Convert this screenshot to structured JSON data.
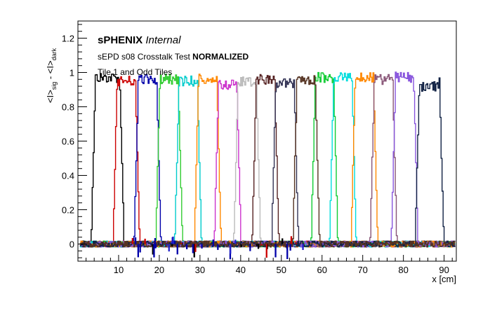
{
  "chart_data": {
    "type": "line",
    "title": "",
    "xlabel": "x [cm]",
    "ylabel": "<I>sig - <I>dark",
    "ylabel_parts": {
      "main1": "<I>",
      "sub1": "sig",
      "minus": " - ",
      "main2": "<I>",
      "sub2": "dark"
    },
    "xlim": [
      0,
      93
    ],
    "ylim": [
      -0.1,
      1.3
    ],
    "x_ticks": [
      10,
      20,
      30,
      40,
      50,
      60,
      70,
      80,
      90
    ],
    "y_ticks": [
      0,
      0.2,
      0.4,
      0.6,
      0.8,
      1,
      1.2
    ],
    "y_tick_labels": [
      "0",
      "0.2",
      "0.4",
      "0.6",
      "0.8",
      "1",
      "1.2"
    ],
    "grid": false,
    "legend": "none",
    "annotations": {
      "brand_bold": "sPHENIX",
      "brand_italic": "Internal",
      "line2_normal": "sEPD s08 Crosstalk Test",
      "line2_bold": "NORMALIZED",
      "line3": "Tile 1 and Odd Tiles"
    },
    "series": [
      {
        "color": "#000000",
        "center": 7.2,
        "width": 7.0,
        "peak": 1.0
      },
      {
        "color": "#cc0000",
        "center": 11.8,
        "width": 5.5,
        "peak": 0.98
      },
      {
        "color": "#0000aa",
        "center": 17.0,
        "width": 5.5,
        "peak": 0.99
      },
      {
        "color": "#33cc33",
        "center": 22.3,
        "width": 5.5,
        "peak": 0.99
      },
      {
        "color": "#00cccc",
        "center": 27.0,
        "width": 5.5,
        "peak": 0.98
      },
      {
        "color": "#ff8800",
        "center": 31.8,
        "width": 5.5,
        "peak": 0.99
      },
      {
        "color": "#cc33cc",
        "center": 36.7,
        "width": 5.5,
        "peak": 0.96
      },
      {
        "color": "#bbbbbb",
        "center": 41.5,
        "width": 5.5,
        "peak": 0.98
      },
      {
        "color": "#552222",
        "center": 46.0,
        "width": 5.5,
        "peak": 0.99
      },
      {
        "color": "#333355",
        "center": 50.8,
        "width": 5.5,
        "peak": 0.97
      },
      {
        "color": "#11cc33",
        "center": 60.5,
        "width": 5.5,
        "peak": 1.0
      },
      {
        "color": "#00dddd",
        "center": 65.0,
        "width": 5.5,
        "peak": 1.0
      },
      {
        "color": "#ff8800",
        "center": 70.3,
        "width": 5.5,
        "peak": 1.0
      },
      {
        "color": "#885577",
        "center": 75.0,
        "width": 5.5,
        "peak": 0.99
      },
      {
        "color": "#8855dd",
        "center": 80.2,
        "width": 5.5,
        "peak": 1.0
      },
      {
        "color": "#112244",
        "center": 86.3,
        "width": 6.0,
        "peak": 0.95
      },
      {
        "color": "#553322",
        "center": 56.0,
        "width": 5.5,
        "peak": 0.99
      }
    ]
  }
}
